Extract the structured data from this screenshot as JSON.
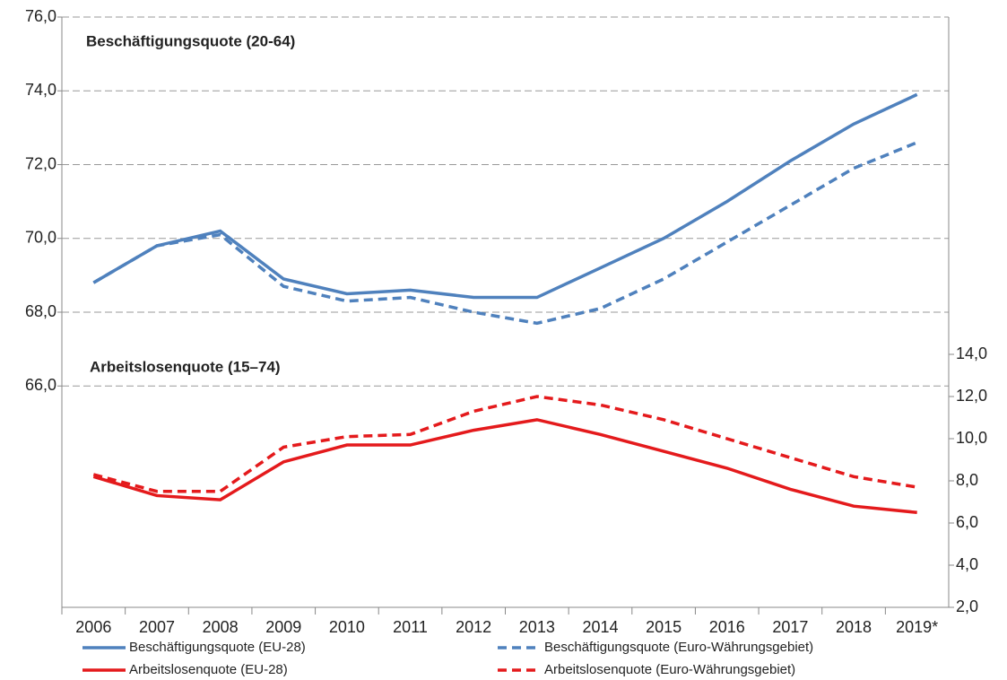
{
  "chart_data": {
    "type": "line",
    "annotations": [
      "Beschäftigungsquote (20-64)",
      "Arbeitslosenquote (15–74)"
    ],
    "categories": [
      "2006",
      "2007",
      "2008",
      "2009",
      "2010",
      "2011",
      "2012",
      "2013",
      "2014",
      "2015",
      "2016",
      "2017",
      "2018",
      "2019*"
    ],
    "series": [
      {
        "name": "Beschäftigungsquote (EU-28)",
        "color": "#4f81bd",
        "dash": false,
        "values": [
          68.8,
          69.8,
          70.2,
          68.9,
          68.5,
          68.6,
          68.4,
          68.4,
          69.2,
          70.0,
          71.0,
          72.1,
          73.1,
          73.9
        ]
      },
      {
        "name": "Beschäftigungsquote (Euro-Währungsgebiet)",
        "color": "#4f81bd",
        "dash": true,
        "values": [
          68.8,
          69.8,
          70.1,
          68.7,
          68.3,
          68.4,
          68.0,
          67.7,
          68.1,
          68.9,
          69.9,
          70.9,
          71.9,
          72.6
        ]
      },
      {
        "name": "Arbeitslosenquote (EU-28)",
        "color": "#e41a1c",
        "dash": false,
        "axis": "y2",
        "values": [
          8.2,
          7.3,
          7.1,
          8.9,
          9.7,
          9.7,
          10.4,
          10.9,
          10.2,
          9.4,
          8.6,
          7.6,
          6.8,
          6.5
        ]
      },
      {
        "name": "Arbeitslosenquote (Euro-Währungsgebiet)",
        "color": "#e41a1c",
        "dash": true,
        "axis": "y2",
        "values": [
          8.3,
          7.5,
          7.5,
          9.6,
          10.1,
          10.2,
          11.3,
          12.0,
          11.6,
          10.9,
          10.0,
          9.1,
          8.2,
          7.7
        ]
      }
    ],
    "ylim": [
      60,
      76
    ],
    "yticks": [
      {
        "value": 66,
        "label": "66,0"
      },
      {
        "value": 68,
        "label": "68,0"
      },
      {
        "value": 70,
        "label": "70,0"
      },
      {
        "value": 72,
        "label": "72,0"
      },
      {
        "value": 74,
        "label": "74,0"
      },
      {
        "value": 76,
        "label": "76,0"
      }
    ],
    "y2lim": [
      2,
      30
    ],
    "y2ticks": [
      {
        "value": 2,
        "label": "2,0"
      },
      {
        "value": 4,
        "label": "4,0"
      },
      {
        "value": 6,
        "label": "6,0"
      },
      {
        "value": 8,
        "label": "8,0"
      },
      {
        "value": 10,
        "label": "10,0"
      },
      {
        "value": 12,
        "label": "12,0"
      },
      {
        "value": 14,
        "label": "14,0"
      }
    ],
    "grid": true
  }
}
